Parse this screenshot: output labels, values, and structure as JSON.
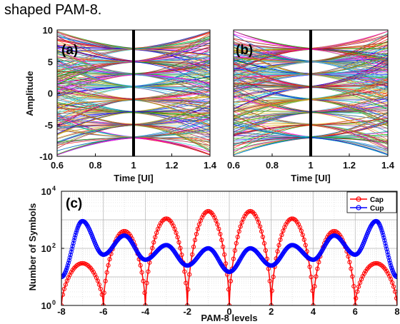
{
  "caption": "shaped PAM-8.",
  "colors": {
    "cap": "#ff0000",
    "cup": "#0000ff",
    "marker": "#000000"
  },
  "chart_data": [
    {
      "type": "line",
      "panel": "(a)",
      "description_kind": "eye-diagram",
      "xlabel": "Time [UI]",
      "ylabel": "Amplitude",
      "xlim": [
        0.6,
        1.4
      ],
      "ylim": [
        -10,
        10
      ],
      "xticks": [
        "0.6",
        "0.8",
        "1",
        "1.2",
        "1.4"
      ],
      "yticks": [
        "-10",
        "-5",
        "0",
        "5",
        "10"
      ],
      "marker_x": 1.0,
      "levels": [
        -7,
        -5,
        -3,
        -1,
        1,
        3,
        5,
        7
      ]
    },
    {
      "type": "line",
      "panel": "(b)",
      "description_kind": "eye-diagram",
      "xlabel": "Time [UI]",
      "xlim": [
        0.6,
        1.4
      ],
      "ylim": [
        -10,
        10
      ],
      "xticks": [
        "0.6",
        "0.8",
        "1",
        "1.2",
        "1.4"
      ],
      "marker_x": 1.0,
      "levels": [
        -7,
        -5,
        -3,
        -1,
        1,
        3,
        5,
        7
      ]
    },
    {
      "type": "line",
      "panel": "(c)",
      "xlabel": "PAM-8 levels",
      "ylabel": "Number of Symbols",
      "xlim": [
        -8,
        8
      ],
      "ylim_log10": [
        0,
        4
      ],
      "xticks": [
        "-8",
        "-6",
        "-4",
        "-2",
        "0",
        "2",
        "4",
        "6",
        "8"
      ],
      "ytick_exponents": [
        "0",
        "2",
        "4"
      ],
      "ytick_base": "10",
      "grid": true,
      "legend_position": "top-right",
      "series": [
        {
          "name": "Cap",
          "peaks": [
            {
              "x": -7,
              "y": 30
            },
            {
              "x": -5,
              "y": 400
            },
            {
              "x": -3,
              "y": 1100
            },
            {
              "x": -1,
              "y": 2000
            },
            {
              "x": 1,
              "y": 2000
            },
            {
              "x": 3,
              "y": 1100
            },
            {
              "x": 5,
              "y": 400
            },
            {
              "x": 7,
              "y": 30
            }
          ],
          "nulls": [
            -8,
            -6,
            -4,
            -2,
            0,
            2,
            4,
            6,
            8
          ],
          "null_value": 1
        },
        {
          "name": "Cup",
          "peaks": [
            {
              "x": -7,
              "y": 900
            },
            {
              "x": -5,
              "y": 280
            },
            {
              "x": -3,
              "y": 130
            },
            {
              "x": -1,
              "y": 100
            },
            {
              "x": 1,
              "y": 100
            },
            {
              "x": 3,
              "y": 130
            },
            {
              "x": 5,
              "y": 280
            },
            {
              "x": 7,
              "y": 900
            }
          ],
          "valleys": [
            {
              "x": -8,
              "y": 10
            },
            {
              "x": -6,
              "y": 60
            },
            {
              "x": -4,
              "y": 40
            },
            {
              "x": -2,
              "y": 25
            },
            {
              "x": 0,
              "y": 15
            },
            {
              "x": 2,
              "y": 25
            },
            {
              "x": 4,
              "y": 40
            },
            {
              "x": 6,
              "y": 60
            },
            {
              "x": 8,
              "y": 10
            }
          ]
        }
      ]
    }
  ]
}
